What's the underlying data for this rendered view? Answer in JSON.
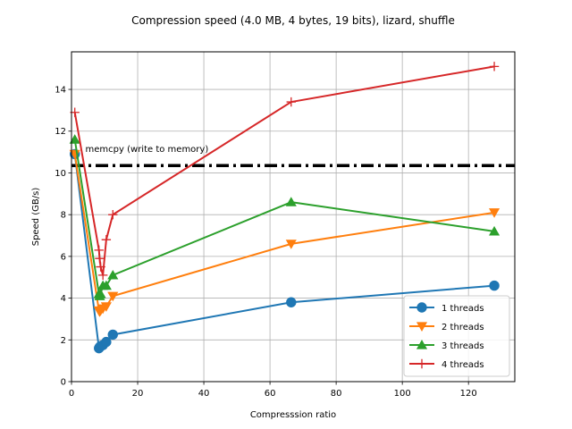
{
  "chart_data": {
    "type": "line",
    "title": "Compression speed (4.0 MB, 4 bytes, 19 bits), lizard, shuffle",
    "xlabel": "Compresssion ratio",
    "ylabel": "Speed (GB/s)",
    "xlim": [
      0,
      134
    ],
    "ylim": [
      0,
      15.8
    ],
    "x_ticks": [
      0,
      20,
      40,
      60,
      80,
      100,
      120
    ],
    "y_ticks": [
      0,
      2,
      4,
      6,
      8,
      10,
      12,
      14
    ],
    "grid": true,
    "legend_position": "lower-right",
    "reference_line": {
      "y": 10.35,
      "label": "memcpy (write to memory)",
      "color": "#000000"
    },
    "series": [
      {
        "name": "1 threads",
        "color": "#1f77b4",
        "marker": "circle",
        "x": [
          1.0,
          8.3,
          8.5,
          8.8,
          9.5,
          10.5,
          12.5,
          66.4,
          127.8
        ],
        "y": [
          10.9,
          1.6,
          1.65,
          1.7,
          1.75,
          1.9,
          2.25,
          3.8,
          4.6
        ]
      },
      {
        "name": "2 threads",
        "color": "#ff7f0e",
        "marker": "triangle-down",
        "x": [
          1.0,
          8.3,
          8.5,
          8.8,
          9.5,
          10.5,
          12.5,
          66.4,
          127.8
        ],
        "y": [
          10.9,
          3.4,
          3.35,
          3.4,
          3.5,
          3.6,
          4.1,
          6.6,
          8.1
        ]
      },
      {
        "name": "3 threads",
        "color": "#2ca02c",
        "marker": "triangle-up",
        "x": [
          1.0,
          8.3,
          8.5,
          8.8,
          9.5,
          10.5,
          12.5,
          66.4,
          127.8
        ],
        "y": [
          11.6,
          4.2,
          4.1,
          4.2,
          4.6,
          4.6,
          5.1,
          8.6,
          7.2
        ]
      },
      {
        "name": "4 threads",
        "color": "#d62728",
        "marker": "plus",
        "x": [
          1.0,
          8.3,
          8.5,
          8.8,
          9.5,
          10.5,
          12.5,
          66.4,
          127.8
        ],
        "y": [
          12.9,
          6.3,
          5.9,
          5.5,
          5.1,
          6.8,
          8.0,
          13.4,
          15.1
        ]
      }
    ]
  }
}
